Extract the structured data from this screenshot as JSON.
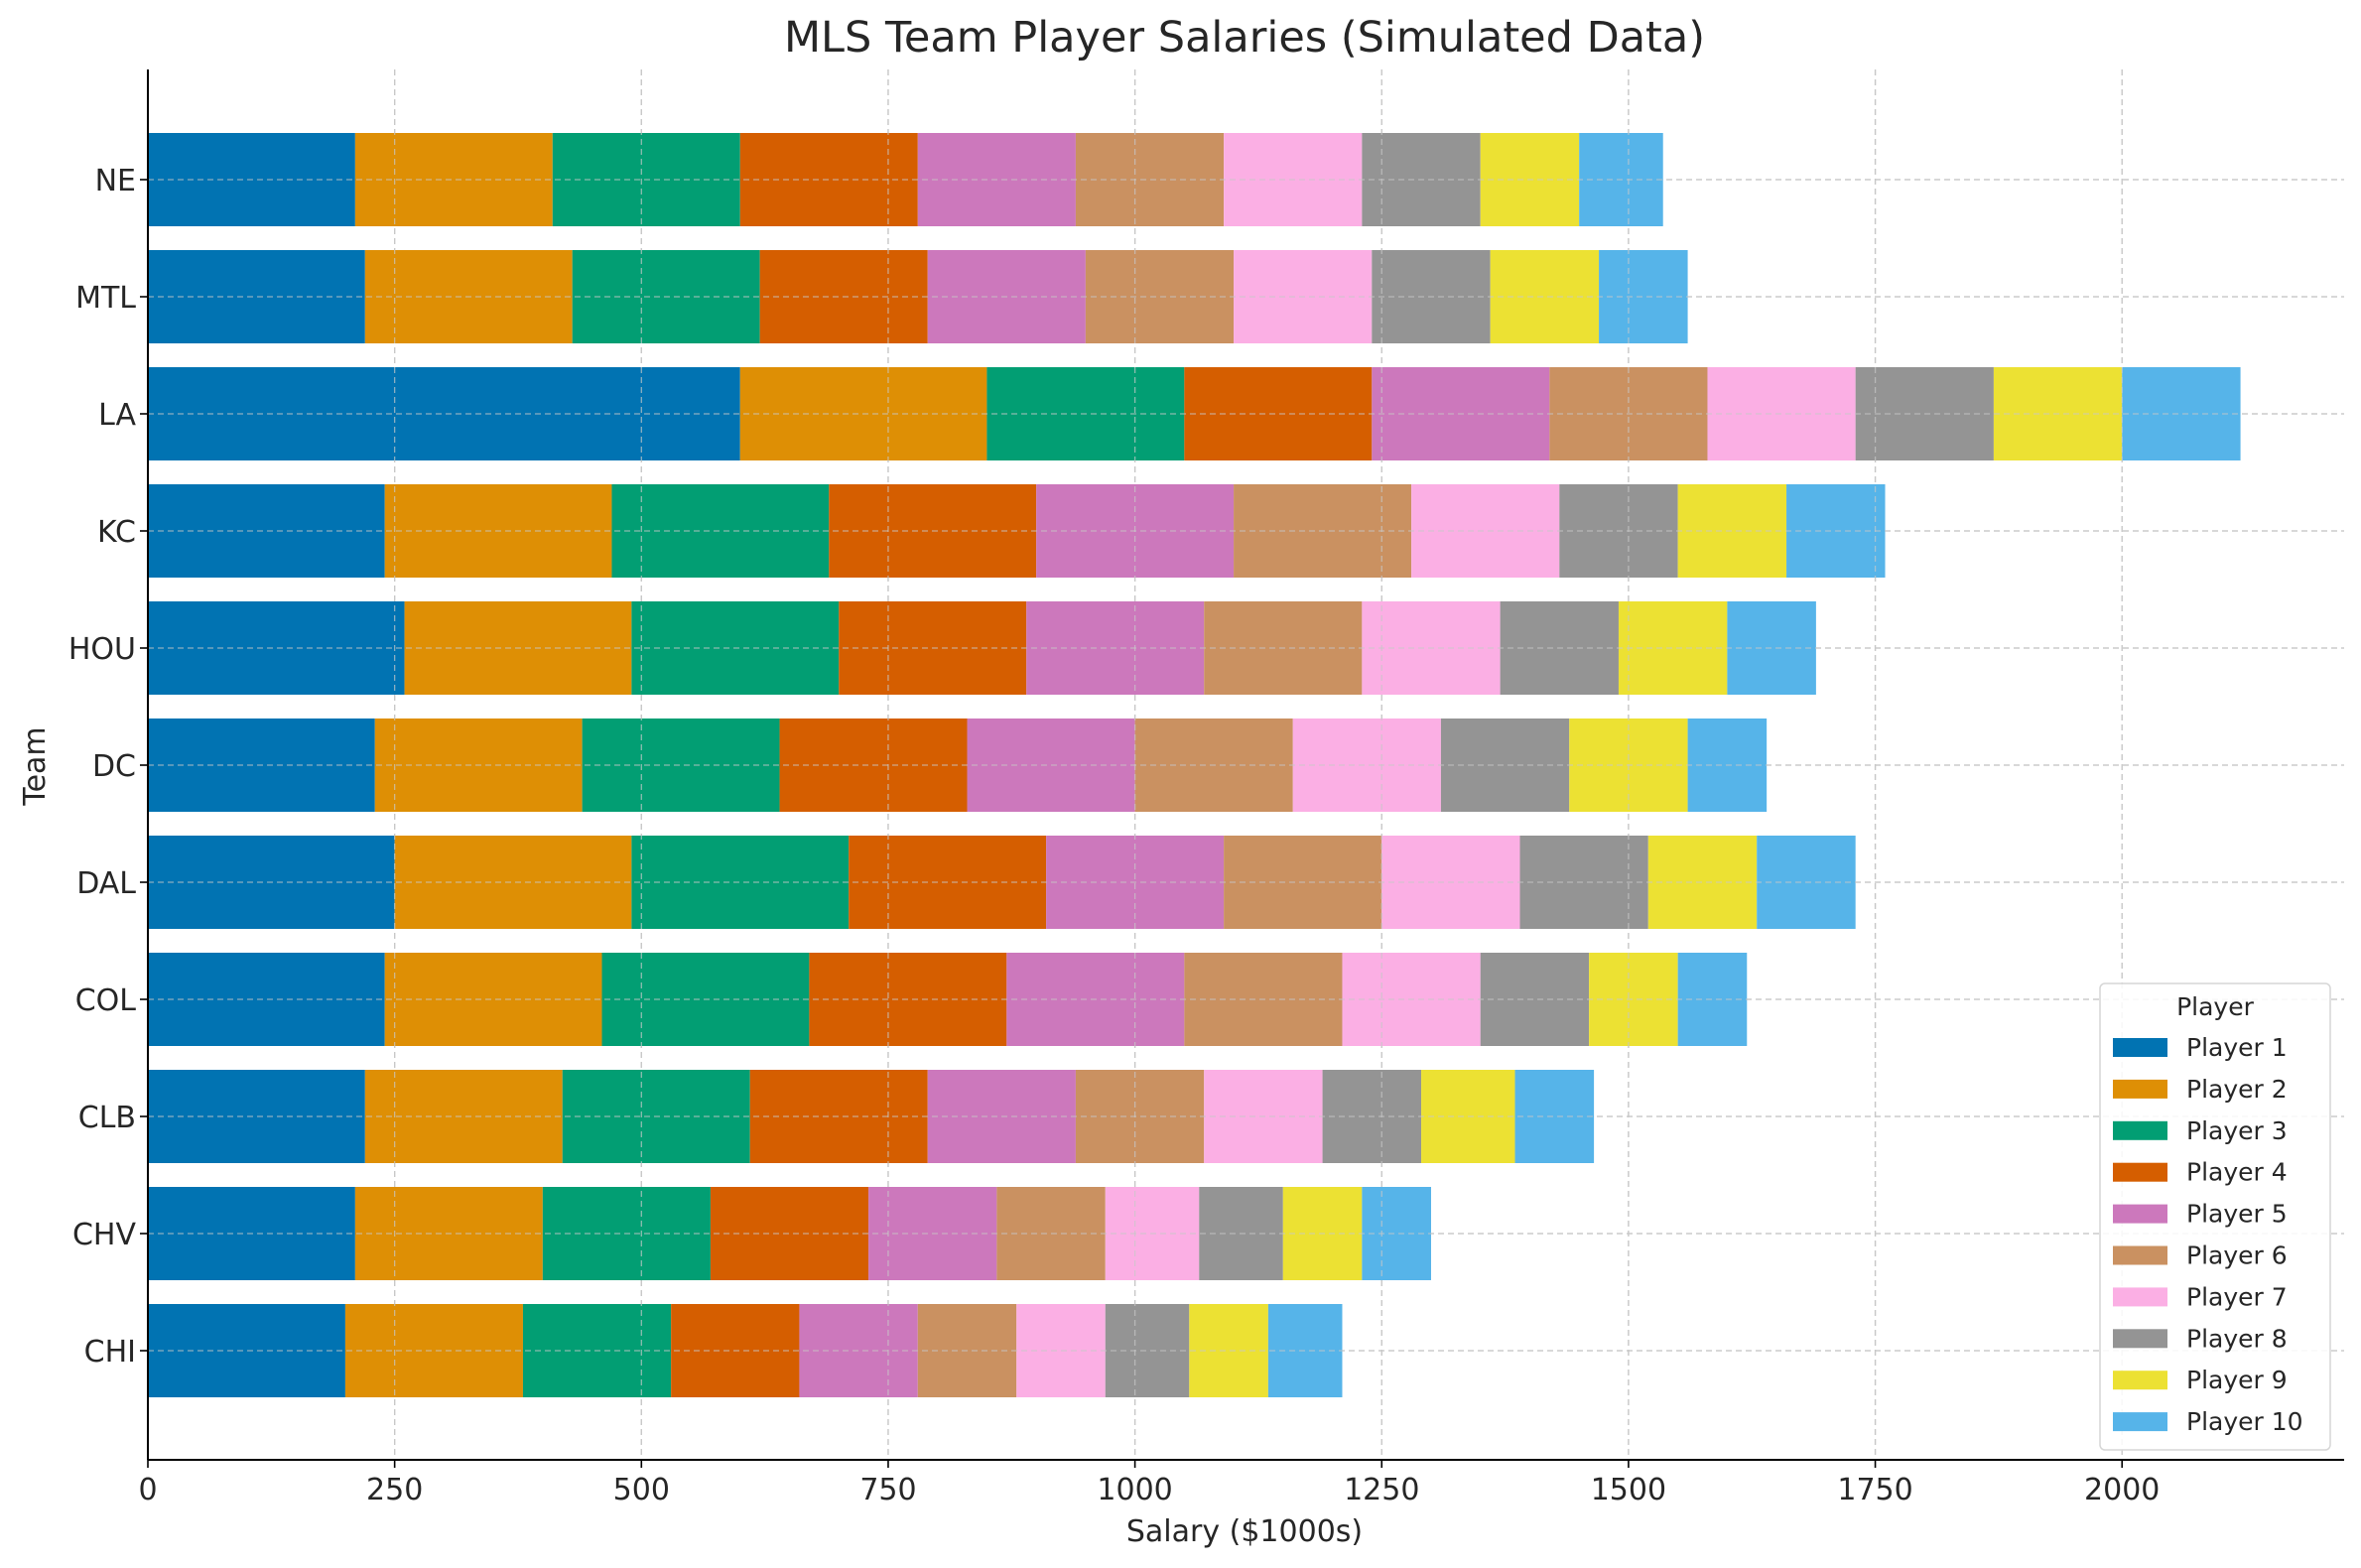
{
  "chart_data": {
    "type": "bar",
    "orientation": "horizontal",
    "stacked": true,
    "title": "MLS Team Player Salaries (Simulated Data)",
    "xlabel": "Salary ($1000s)",
    "ylabel": "Team",
    "xlim": [
      0,
      2225
    ],
    "xticks": [
      0,
      250,
      500,
      750,
      1000,
      1250,
      1500,
      1750,
      2000
    ],
    "xtick_labels": [
      "0",
      "250",
      "500",
      "750",
      "1000",
      "1250",
      "1500",
      "1750",
      "2000"
    ],
    "grid": true,
    "legend_title": "Player",
    "legend_position": "lower right",
    "categories": [
      "CHI",
      "CHV",
      "CLB",
      "COL",
      "DAL",
      "DC",
      "HOU",
      "KC",
      "LA",
      "MTL",
      "NE"
    ],
    "series": [
      {
        "name": "Player 1",
        "color": "#0173b2",
        "values": [
          200,
          210,
          220,
          240,
          250,
          230,
          260,
          240,
          600,
          220,
          210
        ]
      },
      {
        "name": "Player 2",
        "color": "#de8f05",
        "values": [
          180,
          190,
          200,
          220,
          240,
          210,
          230,
          230,
          250,
          210,
          200
        ]
      },
      {
        "name": "Player 3",
        "color": "#029e73",
        "values": [
          150,
          170,
          190,
          210,
          220,
          200,
          210,
          220,
          200,
          190,
          190
        ]
      },
      {
        "name": "Player 4",
        "color": "#d55e00",
        "values": [
          130,
          160,
          180,
          200,
          200,
          190,
          190,
          210,
          190,
          170,
          180
        ]
      },
      {
        "name": "Player 5",
        "color": "#cc78bc",
        "values": [
          120,
          130,
          150,
          180,
          180,
          170,
          180,
          200,
          180,
          160,
          160
        ]
      },
      {
        "name": "Player 6",
        "color": "#ca9161",
        "values": [
          100,
          110,
          130,
          160,
          160,
          160,
          160,
          180,
          160,
          150,
          150
        ]
      },
      {
        "name": "Player 7",
        "color": "#fbafe4",
        "values": [
          90,
          95,
          120,
          140,
          140,
          150,
          140,
          150,
          150,
          140,
          140
        ]
      },
      {
        "name": "Player 8",
        "color": "#949494",
        "values": [
          85,
          85,
          100,
          110,
          130,
          130,
          120,
          120,
          140,
          120,
          120
        ]
      },
      {
        "name": "Player 9",
        "color": "#ece133",
        "values": [
          80,
          80,
          95,
          90,
          110,
          120,
          110,
          110,
          130,
          110,
          100
        ]
      },
      {
        "name": "Player 10",
        "color": "#56b4e9",
        "values": [
          75,
          70,
          80,
          70,
          100,
          80,
          90,
          100,
          120,
          90,
          85
        ]
      }
    ]
  }
}
